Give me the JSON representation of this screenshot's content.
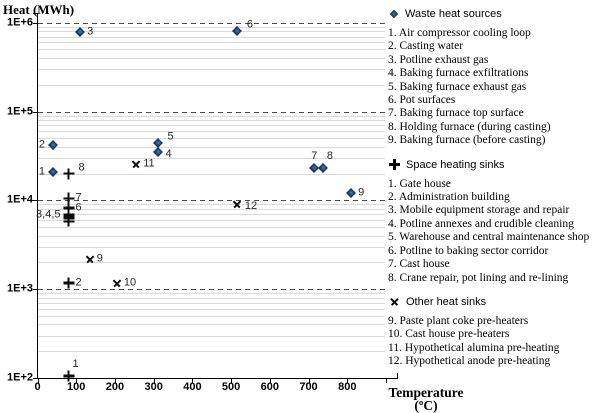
{
  "y_axis": {
    "title": "Heat (MWh)",
    "tick_labels": [
      "1E+6",
      "1E+5",
      "1E+4",
      "1E+3",
      "1E+2"
    ]
  },
  "x_axis": {
    "title": "Temperature",
    "unit": "(ºC)",
    "tick_labels": [
      "0",
      "100",
      "200",
      "300",
      "400",
      "500",
      "600",
      "700",
      "800"
    ]
  },
  "chart_data": {
    "type": "scatter",
    "xlabel": "Temperature (ºC)",
    "ylabel": "Heat (MWh)",
    "x_range": [
      0,
      900
    ],
    "y_scale": "log",
    "y_range": [
      100,
      1000000
    ],
    "grid": "dashed major decade lines + light minor log gridlines",
    "legend_position": "right",
    "series": [
      {
        "name": "Waste heat sources",
        "marker": "diamond",
        "color": "#17365d",
        "points": [
          {
            "label": "1",
            "temperature_c": 40,
            "heat_mwh": 21000,
            "label_pos": "left"
          },
          {
            "label": "2",
            "temperature_c": 40,
            "heat_mwh": 42000,
            "label_pos": "left"
          },
          {
            "label": "3",
            "temperature_c": 110,
            "heat_mwh": 780000,
            "label_pos": "right"
          },
          {
            "label": "4",
            "temperature_c": 310,
            "heat_mwh": 35000,
            "label_pos": "right-below"
          },
          {
            "label": "5",
            "temperature_c": 310,
            "heat_mwh": 44000,
            "label_pos": "right-above"
          },
          {
            "label": "6",
            "temperature_c": 515,
            "heat_mwh": 800000,
            "label_pos": "right-above"
          },
          {
            "label": "7",
            "temperature_c": 715,
            "heat_mwh": 23000,
            "label_pos": "above"
          },
          {
            "label": "8",
            "temperature_c": 737,
            "heat_mwh": 23000,
            "label_pos": "above-right"
          },
          {
            "label": "9",
            "temperature_c": 810,
            "heat_mwh": 12000,
            "label_pos": "right"
          }
        ]
      },
      {
        "name": "Space heating sinks",
        "marker": "plus",
        "color": "#0d0d0d",
        "points": [
          {
            "label": "1",
            "temperature_c": 80,
            "heat_mwh": 105,
            "label_pos": "above-right"
          },
          {
            "label": "2",
            "temperature_c": 80,
            "heat_mwh": 1170,
            "label_pos": "right"
          },
          {
            "label": "3,4,5",
            "temperature_c": 80,
            "heat_mwh": 6800,
            "label_pos": "left"
          },
          {
            "label": "",
            "temperature_c": 80,
            "heat_mwh": 6300,
            "label_pos": "none"
          },
          {
            "label": "",
            "temperature_c": 80,
            "heat_mwh": 5800,
            "label_pos": "none"
          },
          {
            "label": "6",
            "temperature_c": 80,
            "heat_mwh": 8200,
            "label_pos": "right"
          },
          {
            "label": "7",
            "temperature_c": 80,
            "heat_mwh": 10500,
            "label_pos": "right"
          },
          {
            "label": "8",
            "temperature_c": 80,
            "heat_mwh": 20000,
            "label_pos": "right-above"
          }
        ]
      },
      {
        "name": "Other heat sinks",
        "marker": "x",
        "color": "#0d0d0d",
        "points": [
          {
            "label": "9",
            "temperature_c": 135,
            "heat_mwh": 2200,
            "label_pos": "right"
          },
          {
            "label": "10",
            "temperature_c": 205,
            "heat_mwh": 1170,
            "label_pos": "right"
          },
          {
            "label": "11",
            "temperature_c": 255,
            "heat_mwh": 26000,
            "label_pos": "right"
          },
          {
            "label": "12",
            "temperature_c": 515,
            "heat_mwh": 9000,
            "label_pos": "right-below"
          }
        ]
      }
    ]
  },
  "legend": {
    "sections": [
      {
        "marker": "diamond",
        "title": "Waste heat sources",
        "items": [
          "1. Air compressor cooling loop",
          "2. Casting water",
          "3. Potline exhaust gas",
          "4. Baking furnace exfiltrations",
          "5. Baking furnace exhaust gas",
          "6. Pot surfaces",
          "7. Baking furnace top surface",
          "8. Holding furnace (during casting)",
          "9. Baking furnace (before casting)"
        ]
      },
      {
        "marker": "plus",
        "title": "Space heating sinks",
        "items": [
          "1. Gate house",
          "2. Administration building",
          "3. Mobile equipment storage and repair",
          "4. Potline annexes and crudible cleaning",
          "5. Warehouse and central maintenance shop",
          "6. Potline to baking sector corridor",
          "7. Cast house",
          "8. Crane repair, pot lining and re-lining"
        ]
      },
      {
        "marker": "x",
        "title": "Other heat sinks",
        "items": [
          "9. Paste plant coke pre-heaters",
          "10. Cast house pre-heaters",
          "11. Hypothetical alumina pre-heating",
          "12. Hypothetical anode pre-heating"
        ]
      }
    ]
  }
}
